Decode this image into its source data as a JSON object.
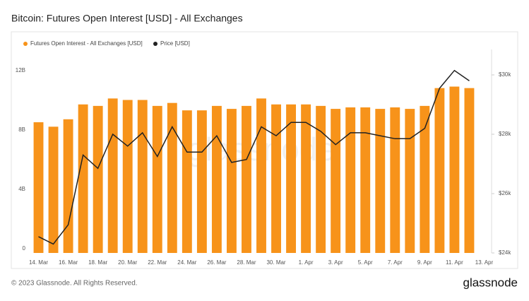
{
  "chart_data": {
    "type": "bar-line",
    "title": "Bitcoin: Futures Open Interest [USD] - All Exchanges",
    "watermark": "glassnode",
    "footer": "© 2023 Glassnode. All Rights Reserved.",
    "brand": "glassnode",
    "categories": [
      "14. Mar",
      null,
      "16. Mar",
      null,
      "18. Mar",
      null,
      "20. Mar",
      null,
      "22. Mar",
      null,
      "24. Mar",
      null,
      "26. Mar",
      null,
      "28. Mar",
      null,
      "30. Mar",
      null,
      "1. Apr",
      null,
      "3. Apr",
      null,
      "5. Apr",
      null,
      "7. Apr",
      null,
      "9. Apr",
      null,
      "11. Apr",
      null,
      "13. Apr"
    ],
    "series": [
      {
        "name": "Futures Open Interest - All Exchanges [USD]",
        "color": "#f7931a",
        "axis": "y",
        "values": [
          8.8,
          8.5,
          9.0,
          10.0,
          9.9,
          10.4,
          10.3,
          10.3,
          9.9,
          10.1,
          9.6,
          9.6,
          9.9,
          9.7,
          9.9,
          10.4,
          10.0,
          10.0,
          10.0,
          9.9,
          9.7,
          9.8,
          9.8,
          9.7,
          9.8,
          9.7,
          9.9,
          11.1,
          11.2,
          11.1,
          null
        ]
      },
      {
        "name": "Price [USD]",
        "color": "#222222",
        "axis": "y2",
        "values": [
          24550,
          24300,
          24950,
          27300,
          26850,
          28000,
          27600,
          28050,
          27250,
          28250,
          27400,
          27400,
          27950,
          27050,
          27150,
          28250,
          27950,
          28400,
          28400,
          28100,
          27650,
          28050,
          28050,
          27950,
          27850,
          27850,
          28200,
          29550,
          30150,
          29800,
          null
        ]
      }
    ],
    "ylim": [
      0,
      13.7
    ],
    "yticks": [
      0,
      {
        "value": 4,
        "label": "4B"
      },
      {
        "value": 8,
        "label": "8B"
      },
      {
        "value": 12,
        "label": "12B"
      }
    ],
    "y2lim": [
      24000,
      30857
    ],
    "y2ticks": [
      {
        "value": 24000,
        "label": "$24k"
      },
      {
        "value": 26000,
        "label": "$26k"
      },
      {
        "value": 28000,
        "label": "$28k"
      },
      {
        "value": 30000,
        "label": "$30k"
      }
    ],
    "grid": false
  }
}
